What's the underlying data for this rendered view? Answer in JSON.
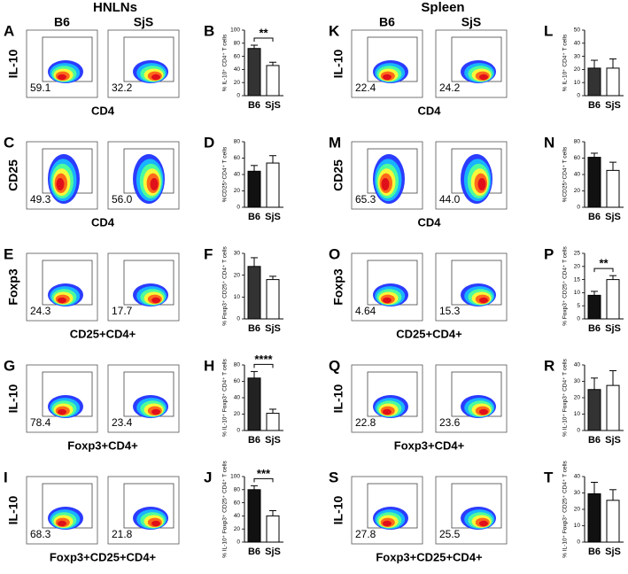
{
  "headers": {
    "left": "HNLNs",
    "right": "Spleen",
    "groups": [
      "B6",
      "SjS"
    ]
  },
  "flow_panels": [
    {
      "panel": "A",
      "y_label": "IL-10",
      "x_label": "CD4",
      "percentages": [
        "59.1",
        "32.2"
      ]
    },
    {
      "panel": "C",
      "y_label": "CD25",
      "x_label": "CD4",
      "percentages": [
        "49.3",
        "56.0"
      ]
    },
    {
      "panel": "E",
      "y_label": "Foxp3",
      "x_label": "CD25+CD4+",
      "percentages": [
        "24.3",
        "17.7"
      ]
    },
    {
      "panel": "G",
      "y_label": "IL-10",
      "x_label": "Foxp3+CD4+",
      "percentages": [
        "78.4",
        "23.4"
      ]
    },
    {
      "panel": "I",
      "y_label": "IL-10",
      "x_label": "Foxp3+CD25+CD4+",
      "percentages": [
        "68.3",
        "21.8"
      ]
    },
    {
      "panel": "K",
      "y_label": "IL-10",
      "x_label": "CD4",
      "percentages": [
        "22.4",
        "24.2"
      ]
    },
    {
      "panel": "M",
      "y_label": "CD25",
      "x_label": "CD4",
      "percentages": [
        "65.3",
        "44.0"
      ]
    },
    {
      "panel": "O",
      "y_label": "Foxp3",
      "x_label": "CD25+CD4+",
      "percentages": [
        "4.64",
        "15.3"
      ]
    },
    {
      "panel": "Q",
      "y_label": "IL-10",
      "x_label": "Foxp3+CD4+",
      "percentages": [
        "22.8",
        "23.6"
      ]
    },
    {
      "panel": "S",
      "y_label": "IL-10",
      "x_label": "Foxp3+CD25+CD4+",
      "percentages": [
        "27.8",
        "25.5"
      ]
    }
  ],
  "chart_data": [
    {
      "type": "bar",
      "panel": "B",
      "y_label": "% IL-10⁺ CD4⁺ T cells",
      "categories": [
        "B6",
        "SjS"
      ],
      "values": [
        72,
        46
      ],
      "errors": [
        5,
        5
      ],
      "colors": [
        "#333333",
        "#ffffff"
      ],
      "ylim": [
        0,
        100
      ],
      "yticks": [
        0,
        20,
        40,
        60,
        80,
        100
      ],
      "significance": "**"
    },
    {
      "type": "bar",
      "panel": "D",
      "y_label": "%CD25⁺CD4⁺ T cells",
      "categories": [
        "B6",
        "SjS"
      ],
      "values": [
        44,
        54
      ],
      "errors": [
        7,
        9
      ],
      "colors": [
        "#111111",
        "#ffffff"
      ],
      "ylim": [
        0,
        80
      ],
      "yticks": [
        0,
        20,
        40,
        60,
        80
      ]
    },
    {
      "type": "bar",
      "panel": "F",
      "y_label": "% Foxp3⁺ CD25⁺ CD4⁺ T cells",
      "categories": [
        "B6",
        "SjS"
      ],
      "values": [
        24,
        18
      ],
      "errors": [
        4,
        1.5
      ],
      "colors": [
        "#333333",
        "#ffffff"
      ],
      "ylim": [
        0,
        30
      ],
      "yticks": [
        0,
        10,
        20,
        30
      ]
    },
    {
      "type": "bar",
      "panel": "H",
      "y_label": "% IL-10⁺ Foxp3⁺ CD4⁺ T cells",
      "categories": [
        "B6",
        "SjS"
      ],
      "values": [
        64,
        21
      ],
      "errors": [
        8,
        5
      ],
      "colors": [
        "#222222",
        "#ffffff"
      ],
      "ylim": [
        0,
        80
      ],
      "yticks": [
        0,
        20,
        40,
        60,
        80
      ],
      "significance": "****"
    },
    {
      "type": "bar",
      "panel": "J",
      "y_label": "% IL-10⁺ Foxp3⁺ CD25⁺ CD4⁺ T cells",
      "categories": [
        "B6",
        "SjS"
      ],
      "values": [
        80,
        40
      ],
      "errors": [
        6,
        8
      ],
      "colors": [
        "#111111",
        "#ffffff"
      ],
      "ylim": [
        0,
        100
      ],
      "yticks": [
        0,
        20,
        40,
        60,
        80,
        100
      ],
      "significance": "***"
    },
    {
      "type": "bar",
      "panel": "L",
      "y_label": "% IL-10⁺ CD4⁺ T cells",
      "categories": [
        "B6",
        "SjS"
      ],
      "values": [
        21,
        21
      ],
      "errors": [
        6,
        7
      ],
      "colors": [
        "#333333",
        "#ffffff"
      ],
      "ylim": [
        0,
        50
      ],
      "yticks": [
        0,
        10,
        20,
        30,
        40,
        50
      ]
    },
    {
      "type": "bar",
      "panel": "N",
      "y_label": "%CD25⁺CD4⁺ T cells",
      "categories": [
        "B6",
        "SjS"
      ],
      "values": [
        61,
        45
      ],
      "errors": [
        5,
        10
      ],
      "colors": [
        "#111111",
        "#ffffff"
      ],
      "ylim": [
        0,
        80
      ],
      "yticks": [
        0,
        20,
        40,
        60,
        80
      ]
    },
    {
      "type": "bar",
      "panel": "P",
      "y_label": "% Foxp3⁺ CD25⁺ CD4⁺ T cells",
      "categories": [
        "B6",
        "SjS"
      ],
      "values": [
        9,
        15
      ],
      "errors": [
        1.5,
        1.5
      ],
      "colors": [
        "#111111",
        "#ffffff"
      ],
      "ylim": [
        0,
        25
      ],
      "yticks": [
        0,
        5,
        10,
        15,
        20,
        25
      ],
      "significance": "**"
    },
    {
      "type": "bar",
      "panel": "R",
      "y_label": "% IL-10⁺ Foxp3⁺ CD4⁺ T cells",
      "categories": [
        "B6",
        "SjS"
      ],
      "values": [
        25,
        27.5
      ],
      "errors": [
        7,
        9
      ],
      "colors": [
        "#333333",
        "#ffffff"
      ],
      "ylim": [
        0,
        40
      ],
      "yticks": [
        0,
        10,
        20,
        30,
        40
      ]
    },
    {
      "type": "bar",
      "panel": "T",
      "y_label": "% IL-10⁺ Foxp3⁺ CD25⁺ CD4⁺ T cells",
      "categories": [
        "B6",
        "SjS"
      ],
      "values": [
        29.5,
        25.5
      ],
      "errors": [
        7,
        6.5
      ],
      "colors": [
        "#111111",
        "#ffffff"
      ],
      "ylim": [
        0,
        40
      ],
      "yticks": [
        0,
        10,
        20,
        30,
        40
      ]
    }
  ]
}
